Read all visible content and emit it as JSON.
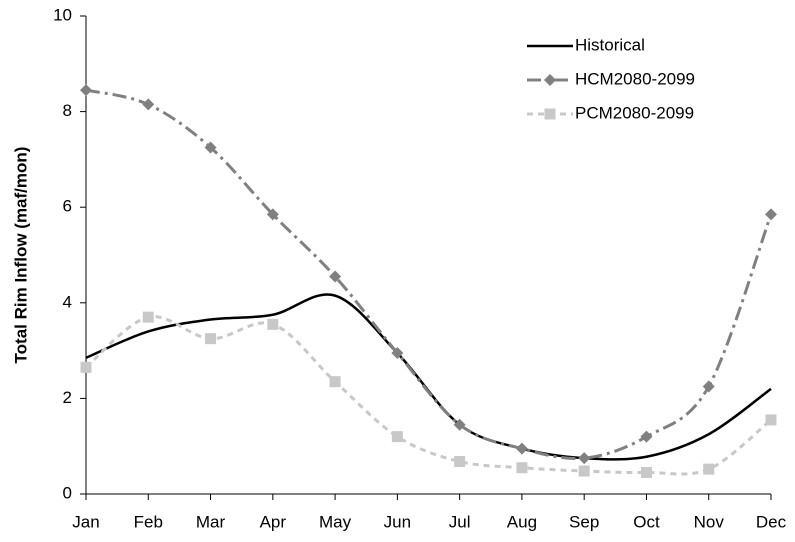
{
  "chart_data": {
    "type": "line",
    "y_label": "Total Rim Inflow (maf/mon)",
    "categories": [
      "Jan",
      "Feb",
      "Mar",
      "Apr",
      "May",
      "Jun",
      "Jul",
      "Aug",
      "Sep",
      "Oct",
      "Nov",
      "Dec"
    ],
    "series": [
      {
        "name": "Historical",
        "color": "#000000",
        "line_style": "solid",
        "marker": "none",
        "values": [
          2.85,
          3.4,
          3.65,
          3.75,
          4.15,
          2.95,
          1.45,
          0.95,
          0.75,
          0.78,
          1.25,
          2.2
        ]
      },
      {
        "name": "HCM2080-2099",
        "color": "#808080",
        "line_style": "dashdot",
        "marker": "diamond",
        "values": [
          8.45,
          8.15,
          7.25,
          5.85,
          4.55,
          2.95,
          1.45,
          0.95,
          0.75,
          1.2,
          2.25,
          5.85
        ]
      },
      {
        "name": "PCM2080-2099",
        "color": "#c8c8c8",
        "line_style": "dashed",
        "marker": "square",
        "values": [
          2.65,
          3.7,
          3.25,
          3.55,
          2.35,
          1.2,
          0.68,
          0.55,
          0.48,
          0.45,
          0.52,
          1.55
        ]
      }
    ],
    "ylim": [
      0,
      10
    ],
    "yticks": [
      0,
      2,
      4,
      6,
      8,
      10
    ],
    "grid": false,
    "legend": "upper right",
    "smooth": true
  }
}
